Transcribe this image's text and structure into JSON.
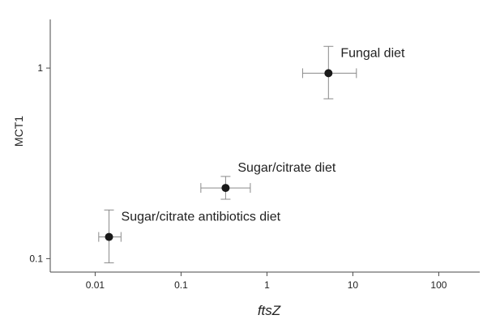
{
  "chart_data": {
    "type": "scatter",
    "title": "",
    "xlabel": "ftsZ",
    "ylabel": "MCT1",
    "x_scale": "log",
    "y_scale": "log",
    "xlim": [
      0.003,
      300
    ],
    "ylim": [
      0.085,
      1.8
    ],
    "grid": false,
    "legend": "none",
    "x_ticks": [
      {
        "value": 0.01,
        "label": "0.01"
      },
      {
        "value": 0.1,
        "label": "0.1"
      },
      {
        "value": 1,
        "label": "1"
      },
      {
        "value": 10,
        "label": "10"
      },
      {
        "value": 100,
        "label": "100"
      }
    ],
    "y_ticks": [
      {
        "value": 0.1,
        "label": "0.1"
      },
      {
        "value": 1,
        "label": "1"
      }
    ],
    "points": [
      {
        "label": "Fungal diet",
        "x": 5.2,
        "x_low": 2.6,
        "x_high": 11,
        "y": 0.94,
        "y_low": 0.69,
        "y_high": 1.3
      },
      {
        "label": "Sugar/citrate diet",
        "x": 0.33,
        "x_low": 0.17,
        "x_high": 0.64,
        "y": 0.235,
        "y_low": 0.205,
        "y_high": 0.27
      },
      {
        "label": "Sugar/citrate antibiotics diet",
        "x": 0.0145,
        "x_low": 0.011,
        "x_high": 0.02,
        "y": 0.13,
        "y_low": 0.095,
        "y_high": 0.18
      }
    ],
    "colors": {
      "point": "#1a1a1a",
      "error_bar": "#8a8a8a",
      "axis": "#4a4a4a",
      "text": "#222222"
    }
  }
}
